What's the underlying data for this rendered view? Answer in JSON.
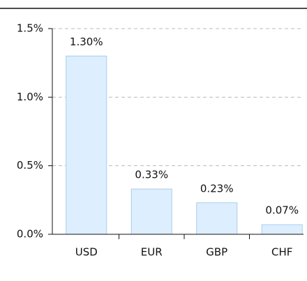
{
  "chart_data": {
    "type": "bar",
    "categories": [
      "USD",
      "EUR",
      "GBP",
      "CHF"
    ],
    "values": [
      1.3,
      0.33,
      0.23,
      0.07
    ],
    "value_labels": [
      "1.30%",
      "0.33%",
      "0.23%",
      "0.07%"
    ],
    "color": "#ddeeff",
    "ylim": [
      0,
      1.5
    ],
    "yticks": [
      {
        "value": 0,
        "label": "0.0%"
      },
      {
        "value": 0.5,
        "label": "0.5%"
      },
      {
        "value": 1.0,
        "label": "1.0%"
      },
      {
        "value": 1.5,
        "label": "1.5%"
      }
    ],
    "grid": true
  }
}
